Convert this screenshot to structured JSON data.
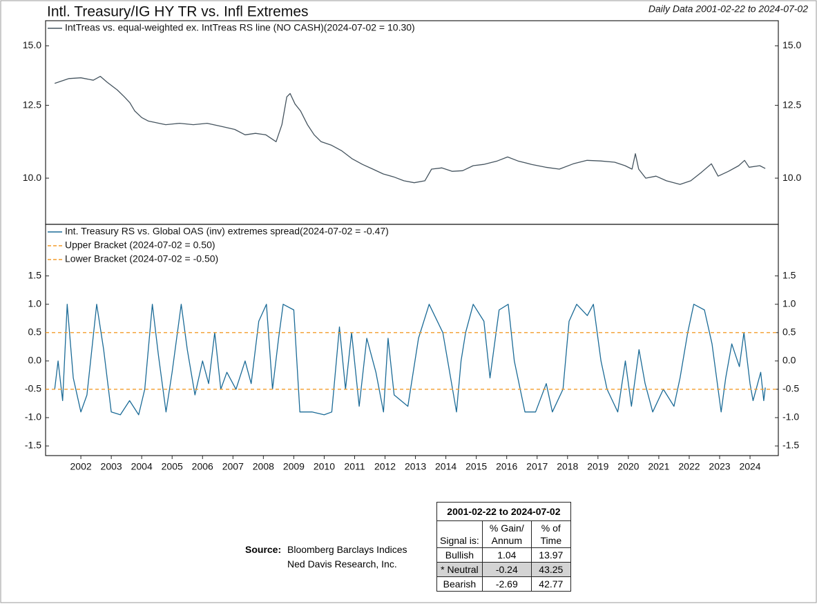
{
  "header": {
    "title": "Intl. Treasury/IG HY TR vs. Infl Extremes",
    "subtitle": "Daily Data 2001-02-22 to 2024-07-02"
  },
  "chart_data": [
    {
      "type": "line",
      "log": true,
      "xlim": [
        2000.84,
        2024.93
      ],
      "ylim": [
        8.68,
        16.2
      ],
      "yticks": [
        {
          "value": 15,
          "label": "15.0"
        },
        12.5,
        {
          "value": 10,
          "label": "10.0"
        }
      ],
      "x": [
        2001.14,
        2001.61,
        2002.0,
        2002.41,
        2002.64,
        2002.86,
        2003.2,
        2003.43,
        2003.61,
        2003.77,
        2004.0,
        2004.22,
        2004.57,
        2004.79,
        2005.25,
        2005.7,
        2006.15,
        2006.61,
        2007.06,
        2007.4,
        2007.74,
        2008.08,
        2008.42,
        2008.61,
        2008.77,
        2008.88,
        2009.04,
        2009.22,
        2009.45,
        2009.67,
        2009.9,
        2010.24,
        2010.58,
        2010.92,
        2011.26,
        2011.6,
        2011.94,
        2012.28,
        2012.62,
        2012.96,
        2013.31,
        2013.53,
        2013.87,
        2014.21,
        2014.55,
        2014.9,
        2015.24,
        2015.69,
        2016.03,
        2016.37,
        2016.82,
        2017.28,
        2017.73,
        2018.19,
        2018.64,
        2019.09,
        2019.55,
        2019.89,
        2020.12,
        2020.23,
        2020.34,
        2020.57,
        2020.91,
        2021.25,
        2021.7,
        2022.05,
        2022.39,
        2022.73,
        2022.95,
        2023.29,
        2023.63,
        2023.82,
        2023.97,
        2024.32,
        2024.5
      ],
      "series": [
        {
          "name": "IntTreas vs. equal-weighted ex. IntTreas RS line (NO CASH)(2024-07-02 = 10.30)",
          "color": "#44535e",
          "values": [
            13.37,
            13.57,
            13.6,
            13.5,
            13.66,
            13.42,
            13.1,
            12.83,
            12.6,
            12.29,
            12.04,
            11.91,
            11.83,
            11.78,
            11.83,
            11.78,
            11.83,
            11.72,
            11.61,
            11.42,
            11.47,
            11.42,
            11.18,
            11.78,
            12.83,
            12.96,
            12.55,
            12.29,
            11.78,
            11.42,
            11.18,
            11.06,
            10.87,
            10.61,
            10.43,
            10.28,
            10.13,
            10.04,
            9.92,
            9.86,
            9.92,
            10.28,
            10.32,
            10.21,
            10.23,
            10.39,
            10.43,
            10.54,
            10.67,
            10.54,
            10.43,
            10.34,
            10.28,
            10.45,
            10.56,
            10.54,
            10.5,
            10.39,
            10.28,
            10.78,
            10.28,
            10.0,
            10.06,
            9.92,
            9.81,
            9.92,
            10.17,
            10.45,
            10.06,
            10.21,
            10.39,
            10.56,
            10.34,
            10.39,
            10.3
          ]
        }
      ]
    },
    {
      "type": "line",
      "xlim": [
        2000.84,
        2024.93
      ],
      "ylim": [
        -1.67,
        2.41
      ],
      "xticks": [
        2002,
        2003,
        2004,
        2005,
        2006,
        2007,
        2008,
        2009,
        2010,
        2011,
        2012,
        2013,
        2014,
        2015,
        2016,
        2017,
        2018,
        2019,
        2020,
        2021,
        2022,
        2023,
        2024
      ],
      "yticks": [
        1.5,
        {
          "value": 1,
          "label": "1.0"
        },
        0.5,
        {
          "value": 0,
          "label": "0.0"
        },
        -0.5,
        {
          "value": -1,
          "label": "-1.0"
        },
        -1.5
      ],
      "x": [
        2001.14,
        2001.25,
        2001.4,
        2001.55,
        2001.75,
        2002.0,
        2002.2,
        2002.52,
        2002.75,
        2003.0,
        2003.3,
        2003.6,
        2003.9,
        2004.1,
        2004.35,
        2004.55,
        2004.8,
        2005.0,
        2005.3,
        2005.5,
        2005.75,
        2006.0,
        2006.2,
        2006.4,
        2006.6,
        2006.8,
        2007.1,
        2007.4,
        2007.6,
        2007.85,
        2008.1,
        2008.3,
        2008.5,
        2008.65,
        2009.0,
        2009.2,
        2009.6,
        2010.0,
        2010.25,
        2010.5,
        2010.7,
        2010.9,
        2011.15,
        2011.4,
        2011.7,
        2011.95,
        2012.1,
        2012.3,
        2012.75,
        2013.1,
        2013.45,
        2013.9,
        2014.35,
        2014.5,
        2014.65,
        2014.9,
        2015.25,
        2015.45,
        2015.75,
        2016.05,
        2016.25,
        2016.6,
        2016.95,
        2017.3,
        2017.5,
        2017.85,
        2018.05,
        2018.3,
        2018.65,
        2018.85,
        2019.1,
        2019.3,
        2019.65,
        2019.9,
        2020.1,
        2020.35,
        2020.55,
        2020.8,
        2021.15,
        2021.5,
        2021.7,
        2021.95,
        2022.15,
        2022.5,
        2022.75,
        2023.05,
        2023.2,
        2023.4,
        2023.65,
        2023.8,
        2024.0,
        2024.1,
        2024.35,
        2024.45,
        2024.5
      ],
      "series": [
        {
          "name": "Int. Treasury RS vs. Global OAS (inv) extremes spread(2024-07-02 = -0.47)",
          "color": "#1a6a96",
          "values": [
            -0.5,
            0.0,
            -0.7,
            1.0,
            -0.3,
            -0.9,
            -0.6,
            1.0,
            0.2,
            -0.9,
            -0.95,
            -0.7,
            -0.95,
            -0.5,
            1.0,
            0.1,
            -0.9,
            -0.2,
            1.0,
            0.2,
            -0.6,
            0.0,
            -0.4,
            0.5,
            -0.5,
            -0.2,
            -0.5,
            0.0,
            -0.4,
            0.7,
            1.0,
            -0.5,
            0.4,
            1.0,
            0.9,
            -0.9,
            -0.9,
            -0.95,
            -0.9,
            0.6,
            -0.5,
            0.5,
            -0.8,
            0.4,
            -0.2,
            -0.9,
            0.4,
            -0.6,
            -0.8,
            0.4,
            1.0,
            0.5,
            -0.9,
            0.0,
            0.5,
            1.0,
            0.7,
            -0.3,
            0.9,
            1.0,
            0.0,
            -0.9,
            -0.9,
            -0.4,
            -0.9,
            -0.5,
            0.7,
            1.0,
            0.8,
            1.0,
            0.0,
            -0.5,
            -0.9,
            0.0,
            -0.8,
            0.2,
            -0.4,
            -0.9,
            -0.5,
            -0.8,
            -0.3,
            0.5,
            1.0,
            0.9,
            0.3,
            -0.9,
            -0.3,
            0.3,
            -0.1,
            0.5,
            -0.4,
            -0.7,
            -0.2,
            -0.7,
            -0.47
          ]
        },
        {
          "name": "Upper Bracket (2024-07-02 = 0.50)",
          "color": "#f39c2a",
          "value": 0.5
        },
        {
          "name": "Lower Bracket (2024-07-02 = -0.50)",
          "color": "#f39c2a",
          "value": -0.5
        }
      ]
    }
  ],
  "table": {
    "title": "2001-02-22 to 2024-07-02",
    "columns": [
      "Signal is:",
      "% Gain/ Annum",
      "% of Time"
    ],
    "rows": [
      [
        "Bullish",
        "1.04",
        "13.97"
      ],
      [
        "* Neutral",
        "-0.24",
        "43.25"
      ],
      [
        "Bearish",
        "-2.69",
        "42.77"
      ]
    ]
  },
  "source": {
    "label": "Source:",
    "lines": [
      "Bloomberg Barclays Indices",
      "Ned Davis Research, Inc."
    ]
  }
}
